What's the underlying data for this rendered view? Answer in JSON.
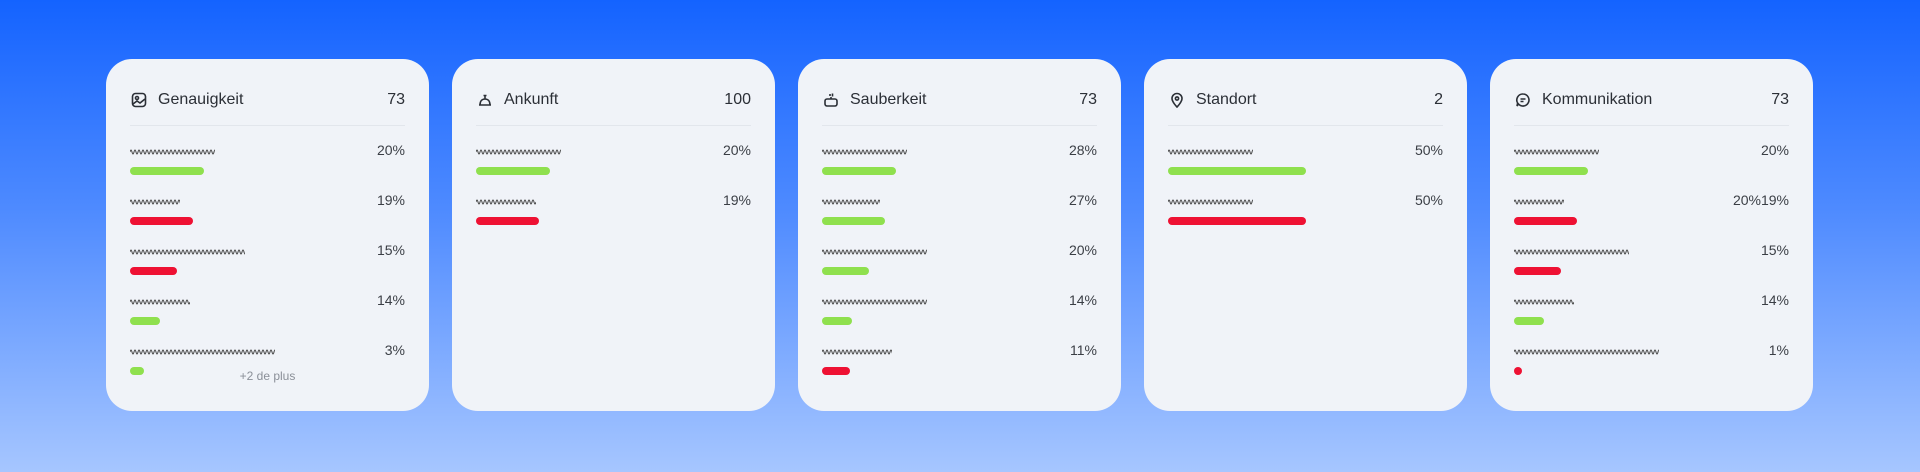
{
  "colors": {
    "positive": "#8fe04e",
    "negative": "#ee1133"
  },
  "cards": [
    {
      "title": "Genauigkeit",
      "icon": "image-icon",
      "count": "73",
      "more": "+2 de plus",
      "rows": [
        {
          "pct": "20%",
          "bar": 0.27,
          "tone": "positive"
        },
        {
          "pct": "19%",
          "bar": 0.23,
          "tone": "negative"
        },
        {
          "pct": "15%",
          "bar": 0.17,
          "tone": "negative"
        },
        {
          "pct": "14%",
          "bar": 0.11,
          "tone": "positive"
        },
        {
          "pct": "3%",
          "bar": 0.05,
          "tone": "positive"
        }
      ]
    },
    {
      "title": "Ankunft",
      "icon": "bell-icon",
      "count": "100",
      "rows": [
        {
          "pct": "20%",
          "bar": 0.27,
          "tone": "positive"
        },
        {
          "pct": "19%",
          "bar": 0.23,
          "tone": "negative"
        }
      ]
    },
    {
      "title": "Sauberkeit",
      "icon": "cleaning-icon",
      "count": "73",
      "rows": [
        {
          "pct": "28%",
          "bar": 0.27,
          "tone": "positive"
        },
        {
          "pct": "27%",
          "bar": 0.23,
          "tone": "positive"
        },
        {
          "pct": "20%",
          "bar": 0.17,
          "tone": "positive"
        },
        {
          "pct": "14%",
          "bar": 0.11,
          "tone": "positive"
        },
        {
          "pct": "11%",
          "bar": 0.1,
          "tone": "negative"
        }
      ]
    },
    {
      "title": "Standort",
      "icon": "location-pin-icon",
      "count": "2",
      "rows": [
        {
          "pct": "50%",
          "bar": 0.5,
          "tone": "positive"
        },
        {
          "pct": "50%",
          "bar": 0.5,
          "tone": "negative"
        }
      ]
    },
    {
      "title": "Kommunikation",
      "icon": "chat-icon",
      "count": "73",
      "rows": [
        {
          "pct": "20%",
          "bar": 0.27,
          "tone": "positive"
        },
        {
          "pct": "20%19%",
          "bar": 0.23,
          "tone": "negative"
        },
        {
          "pct": "15%",
          "bar": 0.17,
          "tone": "negative"
        },
        {
          "pct": "14%",
          "bar": 0.11,
          "tone": "positive"
        },
        {
          "pct": "1%",
          "bar": 0.03,
          "tone": "negative"
        }
      ]
    }
  ]
}
